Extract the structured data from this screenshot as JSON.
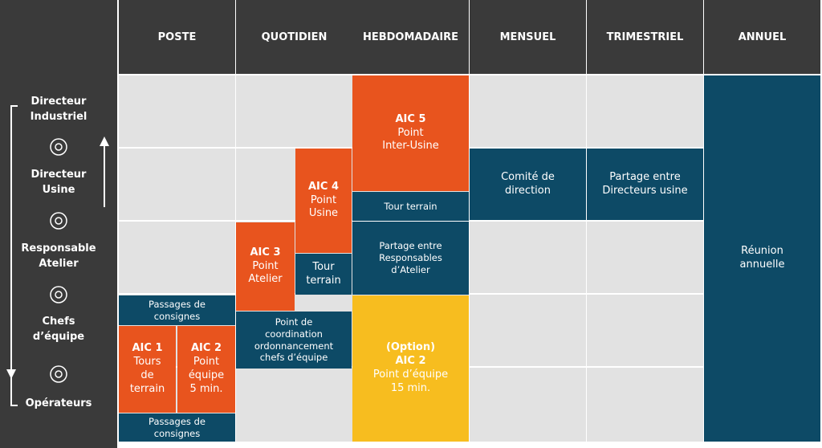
{
  "headers": [
    "POSTE",
    "QUOTIDIEN",
    "HEBDOMADAIRE",
    "MENSUEL",
    "TRIMESTRIEL",
    "ANNUEL"
  ],
  "levels": [
    [
      "Directeur",
      "Industriel"
    ],
    [
      "Directeur",
      "Usine"
    ],
    [
      "Responsable",
      "Atelier"
    ],
    [
      "Chefs",
      "d’équipe"
    ],
    [
      "Opérateurs"
    ]
  ],
  "blocks": [
    {
      "text": [
        "Passages de",
        "consignes"
      ],
      "color": "#0d4a66"
    },
    {
      "title": [
        "AIC 1"
      ],
      "text": [
        "Tours",
        "de",
        "terrain"
      ],
      "color": "#e8541e"
    },
    {
      "title": [
        "AIC 2"
      ],
      "text": [
        "Point",
        "équipe",
        "5 min."
      ],
      "color": "#e8541e"
    },
    {
      "text": [
        "Passages de",
        "consignes"
      ],
      "color": "#0d4a66"
    },
    {
      "title": [
        "AIC 3"
      ],
      "text": [
        "Point",
        "Atelier"
      ],
      "color": "#e8541e"
    },
    {
      "text": [
        "Point de",
        "coordination",
        "ordonnancement",
        "chefs d’équipe"
      ],
      "color": "#0d4a66"
    },
    {
      "title": [
        "AIC 4"
      ],
      "text": [
        "Point",
        "Usine"
      ],
      "color": "#e8541e"
    },
    {
      "text": [
        "Tour",
        "terrain"
      ],
      "color": "#0d4a66"
    },
    {
      "title": [
        "AIC 5"
      ],
      "text": [
        "Point",
        "Inter-Usine"
      ],
      "color": "#e8541e"
    },
    {
      "text": [
        "Tour terrain"
      ],
      "color": "#0d4a66"
    },
    {
      "text": [
        "Partage entre",
        "Responsables",
        "d’Atelier"
      ],
      "color": "#0d4a66"
    },
    {
      "title": [
        "(Option)",
        "AIC 2"
      ],
      "text": [
        "Point d’équipe",
        "15 min."
      ],
      "color": "#f7bd1f"
    },
    {
      "text": [
        "Comité de",
        "direction"
      ],
      "color": "#0d4a66"
    },
    {
      "text": [
        "Partage entre",
        "Directeurs usine"
      ],
      "color": "#0d4a66"
    },
    {
      "text": [
        "Réunion",
        "annuelle"
      ],
      "color": "#0d4a66"
    }
  ]
}
